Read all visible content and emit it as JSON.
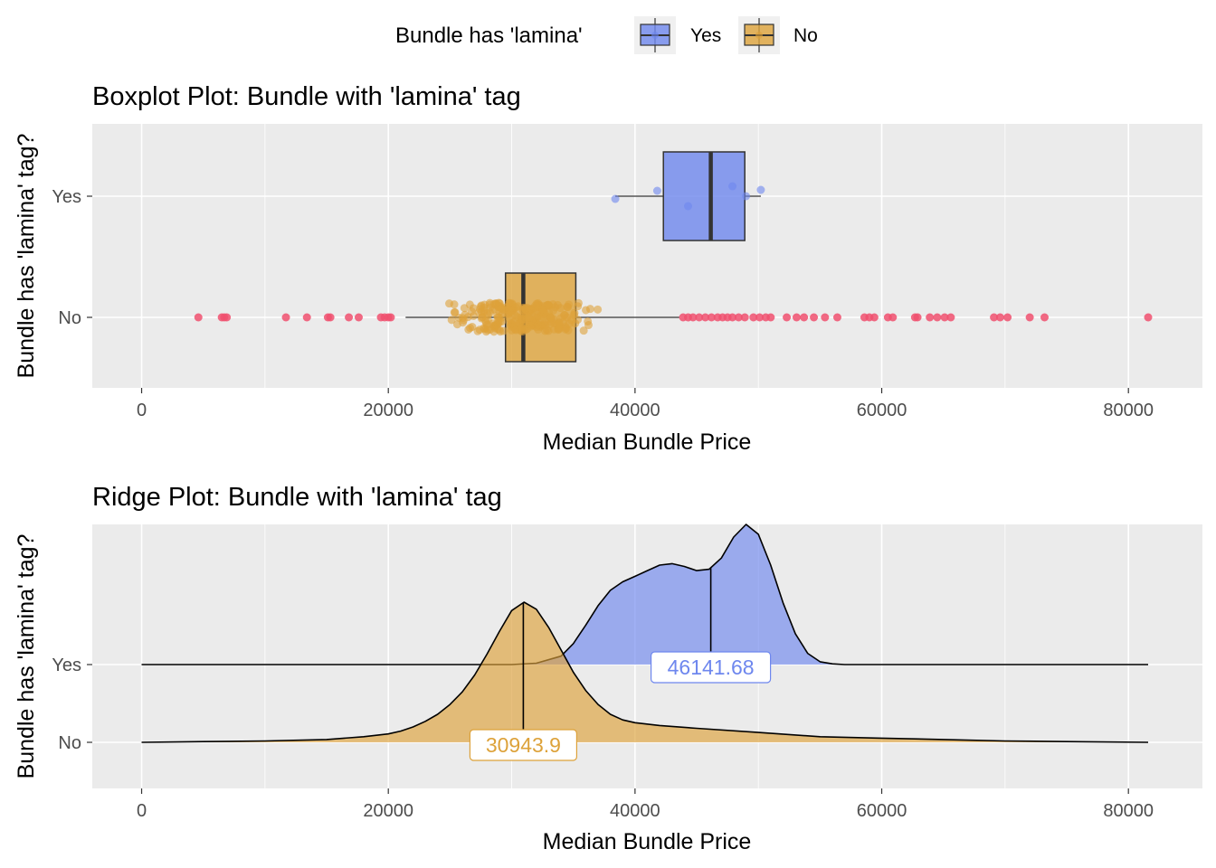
{
  "legend": {
    "title": "Bundle has 'lamina'",
    "items": [
      {
        "label": "Yes",
        "color": "#6E87EE"
      },
      {
        "label": "No",
        "color": "#DDA23A"
      }
    ]
  },
  "chart_data": [
    {
      "type": "boxplot",
      "title": "Boxplot Plot: Bundle with 'lamina' tag",
      "xlabel": "Median Bundle Price",
      "ylabel": "Bundle has 'lamina' tag?",
      "xlim": [
        -4000,
        86000
      ],
      "x_ticks": [
        0,
        20000,
        40000,
        60000,
        80000
      ],
      "categories": [
        "Yes",
        "No"
      ],
      "boxes": [
        {
          "category": "Yes",
          "whisker_low": 38400,
          "q1": 42300,
          "median": 46142,
          "q3": 48900,
          "whisker_high": 50200,
          "color": "#6E87EE"
        },
        {
          "category": "No",
          "whisker_low": 21400,
          "q1": 29500,
          "median": 30944,
          "q3": 35200,
          "whisker_high": 43600,
          "color": "#DDA23A"
        }
      ],
      "yes_points": [
        38400,
        41800,
        44300,
        47900,
        49000,
        50200
      ],
      "outliers_color": "#F0506E",
      "outliers_no": [
        4600,
        6500,
        6700,
        6900,
        11700,
        13400,
        15100,
        15300,
        16800,
        17600,
        19400,
        19700,
        20000,
        20200,
        43900,
        44300,
        44700,
        45200,
        45700,
        46200,
        46700,
        47100,
        47500,
        47900,
        48400,
        48900,
        49600,
        50100,
        50600,
        51000,
        52300,
        53100,
        53700,
        54500,
        55400,
        56400,
        58600,
        59000,
        59400,
        60500,
        60900,
        62700,
        62900,
        63900,
        64500,
        65100,
        65600,
        69100,
        69600,
        70200,
        72000,
        73200,
        81600
      ],
      "grid": true
    },
    {
      "type": "ridge",
      "title": "Ridge Plot: Bundle with 'lamina' tag",
      "xlabel": "Median Bundle Price",
      "ylabel": "Bundle has 'lamina' tag?",
      "xlim": [
        -4000,
        86000
      ],
      "x_ticks": [
        0,
        20000,
        40000,
        60000,
        80000
      ],
      "categories": [
        "Yes",
        "No"
      ],
      "series": [
        {
          "name": "Yes",
          "color": "#6E87EE",
          "median": 46141.68,
          "median_label": "46141.68",
          "range": [
            0,
            81600
          ],
          "density_x": [
            0,
            30000,
            32000,
            34000,
            35000,
            36000,
            37000,
            38000,
            39000,
            40000,
            41000,
            42000,
            43000,
            44000,
            45000,
            46000,
            47000,
            48000,
            49000,
            50000,
            51000,
            52000,
            53000,
            54000,
            55000,
            56000,
            57000,
            81600
          ],
          "density_y": [
            0,
            0,
            0.01,
            0.06,
            0.15,
            0.28,
            0.42,
            0.53,
            0.59,
            0.63,
            0.67,
            0.71,
            0.72,
            0.7,
            0.67,
            0.68,
            0.76,
            0.91,
            1.0,
            0.93,
            0.71,
            0.44,
            0.22,
            0.08,
            0.02,
            0.005,
            0,
            0
          ]
        },
        {
          "name": "No",
          "color": "#DDA23A",
          "median": 30943.9,
          "median_label": "30943.9",
          "range": [
            0,
            81600
          ],
          "density_x": [
            0,
            5000,
            10000,
            15000,
            18000,
            20000,
            21000,
            22000,
            23000,
            24000,
            25000,
            26000,
            27000,
            28000,
            29000,
            30000,
            31000,
            32000,
            33000,
            34000,
            35000,
            36000,
            37000,
            38000,
            39000,
            40000,
            42000,
            45000,
            50000,
            55000,
            60000,
            65000,
            70000,
            75000,
            81600
          ],
          "density_y": [
            0,
            0.005,
            0.01,
            0.02,
            0.04,
            0.06,
            0.08,
            0.11,
            0.15,
            0.2,
            0.27,
            0.36,
            0.48,
            0.63,
            0.79,
            0.94,
            1.0,
            0.95,
            0.82,
            0.66,
            0.5,
            0.37,
            0.27,
            0.2,
            0.16,
            0.14,
            0.12,
            0.1,
            0.07,
            0.04,
            0.03,
            0.02,
            0.01,
            0.005,
            0
          ]
        }
      ],
      "grid": true
    }
  ]
}
